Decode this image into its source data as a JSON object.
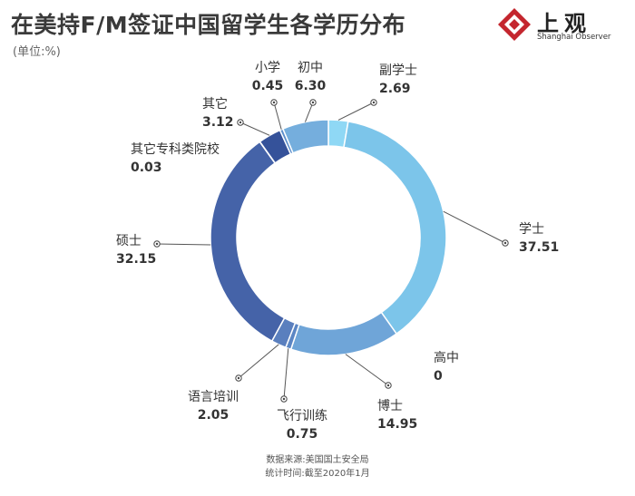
{
  "title": "在美持F/M签证中国留学生各学历分布",
  "unit": "(单位:%)",
  "logo": {
    "name": "上观",
    "subtitle": "Shanghai Observer",
    "color": "#c4262e"
  },
  "chart_data": {
    "type": "pie",
    "donut": true,
    "title": "在美持F/M签证中国留学生各学历分布",
    "unit": "%",
    "slices": [
      {
        "name": "副学士",
        "value": 2.69,
        "label": "2.69",
        "color": "#8fd8f5"
      },
      {
        "name": "学士",
        "value": 37.51,
        "label": "37.51",
        "color": "#7cc5ea"
      },
      {
        "name": "高中",
        "value": 0,
        "label": "0",
        "color": "#72b4df"
      },
      {
        "name": "博士",
        "value": 14.95,
        "label": "14.95",
        "color": "#6fa5d8"
      },
      {
        "name": "飞行训练",
        "value": 0.75,
        "label": "0.75",
        "color": "#5b86c4"
      },
      {
        "name": "语言培训",
        "value": 2.05,
        "label": "2.05",
        "color": "#5a7fbe"
      },
      {
        "name": "硕士",
        "value": 32.15,
        "label": "32.15",
        "color": "#4563a8"
      },
      {
        "name": "其它专科类院校",
        "value": 0.03,
        "label": "0.03",
        "color": "#4563a8"
      },
      {
        "name": "其它",
        "value": 3.12,
        "label": "3.12",
        "color": "#35529a"
      },
      {
        "name": "小学",
        "value": 0.45,
        "label": "0.45",
        "color": "#5d8fcc"
      },
      {
        "name": "初中",
        "value": 6.3,
        "label": "6.30",
        "color": "#75aedd"
      }
    ]
  },
  "footer": {
    "source": "数据来源:美国国土安全局",
    "date": "统计时间:截至2020年1月"
  }
}
